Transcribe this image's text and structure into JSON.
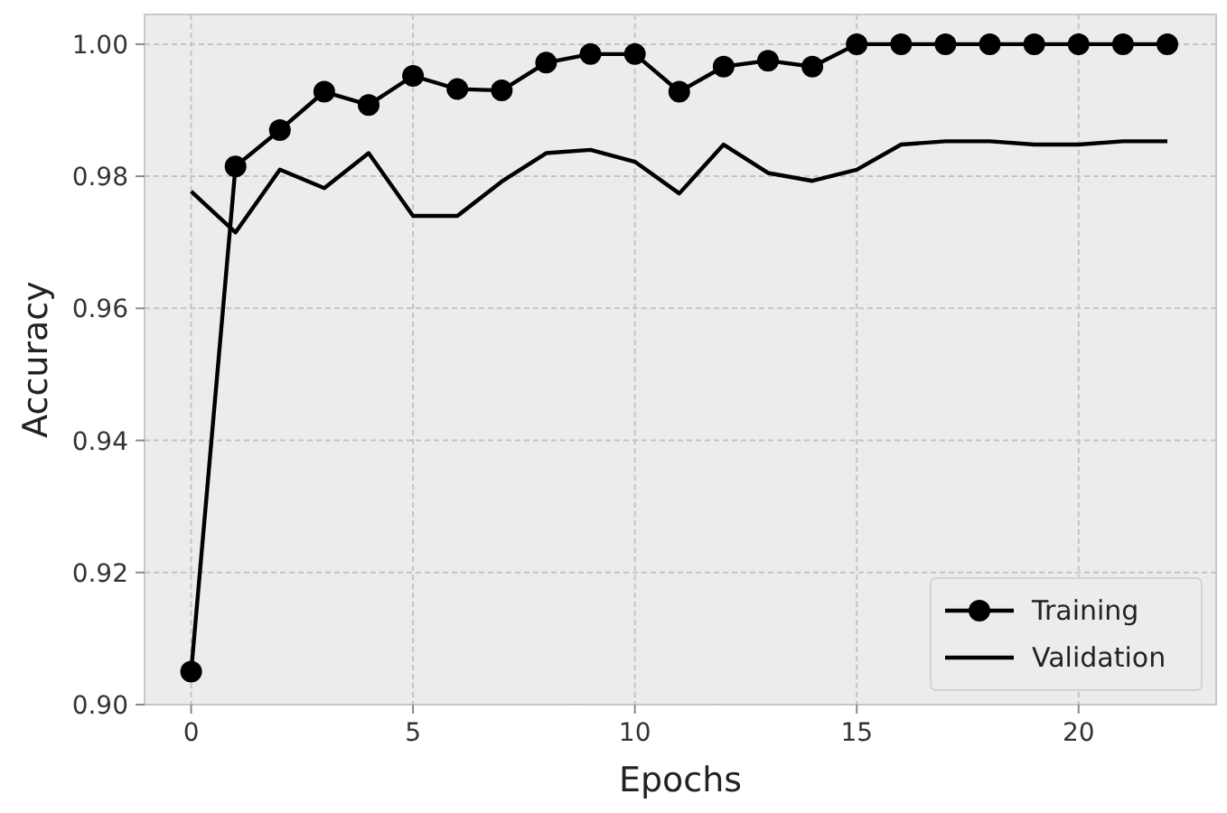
{
  "chart_data": {
    "type": "line",
    "xlabel": "Epochs",
    "ylabel": "Accuracy",
    "x": [
      0,
      1,
      2,
      3,
      4,
      5,
      6,
      7,
      8,
      9,
      10,
      11,
      12,
      13,
      14,
      15,
      16,
      17,
      18,
      19,
      20,
      21,
      22
    ],
    "series": [
      {
        "name": "Training",
        "color": "#000000",
        "marker": "circle",
        "values": [
          0.905,
          0.9815,
          0.987,
          0.9928,
          0.9908,
          0.9952,
          0.9932,
          0.993,
          0.9972,
          0.9985,
          0.9985,
          0.9928,
          0.9966,
          0.9975,
          0.9966,
          1.0,
          1.0,
          1.0,
          1.0,
          1.0,
          1.0,
          1.0,
          1.0
        ]
      },
      {
        "name": "Validation",
        "color": "#000000",
        "marker": "none",
        "values": [
          0.9777,
          0.9715,
          0.981,
          0.9782,
          0.9835,
          0.974,
          0.974,
          0.9792,
          0.9835,
          0.984,
          0.9822,
          0.9774,
          0.9848,
          0.9805,
          0.9793,
          0.981,
          0.9848,
          0.9853,
          0.9853,
          0.9848,
          0.9848,
          0.9853,
          0.9853
        ]
      }
    ],
    "xlim": [
      -1.05,
      23.1
    ],
    "ylim": [
      0.9,
      1.0045
    ],
    "xticks": [
      0,
      5,
      10,
      15,
      20
    ],
    "yticks": [
      {
        "value": 0.9,
        "label": "0.90"
      },
      {
        "value": 0.92,
        "label": "0.92"
      },
      {
        "value": 0.94,
        "label": "0.94"
      },
      {
        "value": 0.96,
        "label": "0.96"
      },
      {
        "value": 0.98,
        "label": "0.98"
      },
      {
        "value": 1.0,
        "label": "1.00"
      }
    ],
    "grid": true,
    "legend": "bottom right",
    "line_style": "solid"
  }
}
